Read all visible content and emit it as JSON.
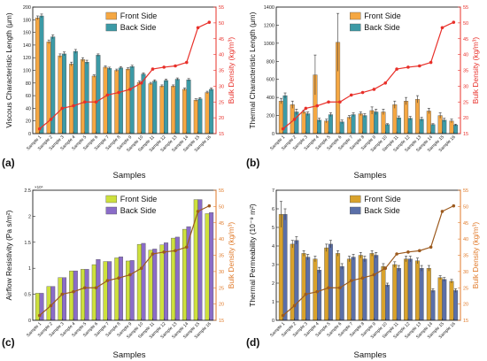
{
  "figure": {
    "samples_label": "Samples",
    "legend": {
      "front": "Front Side",
      "back": "Back Side"
    },
    "colors": {
      "front_a": "#f5a742",
      "back_a": "#3c9aa6",
      "front_d": "#d9a22b",
      "back_d": "#5a6fa8",
      "front_c": "#cde03c",
      "back_c": "#8a6cc8",
      "density_red": "#e8302a",
      "density_brown": "#9c5a1e",
      "axis_red": "#e8302a",
      "axis_orange": "#e07a2a"
    }
  },
  "chart_data": [
    {
      "panel": "(a)",
      "type": "bar",
      "categories": [
        "Sample 1",
        "Sample 2",
        "Sample 3",
        "Sample 4",
        "Sample 5",
        "Sample 6",
        "Sample 7",
        "Sample 8",
        "Sample 9",
        "Sample 10",
        "Sample 11",
        "Sample 12",
        "Sample 13",
        "Sample 14",
        "Sample 15",
        "Sample 16"
      ],
      "series": [
        {
          "name": "Front Side",
          "values": [
            183,
            145,
            123,
            110,
            117,
            91,
            105,
            100,
            102,
            81,
            79,
            75,
            75,
            70,
            53,
            65
          ],
          "errors": [
            3,
            3,
            3,
            3,
            3,
            2,
            2,
            2,
            2,
            2,
            2,
            2,
            2,
            2,
            2,
            2
          ]
        },
        {
          "name": "Back Side",
          "values": [
            186,
            153,
            126,
            130,
            113,
            124,
            103,
            104,
            106,
            94,
            83,
            84,
            86,
            85,
            55,
            70
          ],
          "errors": [
            3,
            3,
            3,
            3,
            3,
            2,
            2,
            2,
            2,
            2,
            2,
            2,
            2,
            2,
            2,
            2
          ]
        }
      ],
      "line": {
        "name": "Bulk Density",
        "values": [
          16.5,
          19.5,
          23,
          23.8,
          25,
          25,
          27.2,
          28,
          29,
          31,
          35.4,
          36,
          36.4,
          37.5,
          48.5,
          50.2
        ]
      },
      "ylabel": "Viscous Characteristic Length (μm)",
      "y2label": "Bulk Density (kg/m³)",
      "ylim": [
        0,
        200
      ],
      "yticks": [
        0,
        20,
        40,
        60,
        80,
        100,
        120,
        140,
        160,
        180,
        200
      ],
      "y2lim": [
        15,
        55
      ],
      "y2ticks": [
        15,
        20,
        25,
        30,
        35,
        40,
        45,
        50,
        55
      ],
      "legend": "top-center"
    },
    {
      "panel": "(b)",
      "type": "bar",
      "categories": [
        "Sample 1",
        "Sample 2",
        "Sample 3",
        "Sample 4",
        "Sample 5",
        "Sample 6",
        "Sample 7",
        "Sample 8",
        "Sample 9",
        "Sample 10",
        "Sample 11",
        "Sample 12",
        "Sample 13",
        "Sample 14",
        "Sample 15",
        "Sample 16"
      ],
      "series": [
        {
          "name": "Front Side",
          "values": [
            360,
            320,
            240,
            650,
            140,
            1010,
            180,
            220,
            255,
            240,
            320,
            360,
            380,
            250,
            200,
            140
          ],
          "errors": [
            30,
            40,
            20,
            220,
            20,
            320,
            20,
            20,
            40,
            30,
            40,
            40,
            40,
            30,
            30,
            20
          ]
        },
        {
          "name": "Back Side",
          "values": [
            420,
            240,
            220,
            150,
            210,
            130,
            210,
            200,
            240,
            100,
            175,
            170,
            160,
            100,
            150,
            95
          ],
          "errors": [
            30,
            30,
            20,
            20,
            20,
            20,
            20,
            20,
            30,
            10,
            20,
            20,
            20,
            10,
            20,
            10
          ]
        }
      ],
      "line": {
        "name": "Bulk Density",
        "values": [
          16.5,
          19.5,
          23,
          23.8,
          25,
          25,
          27.2,
          28,
          29,
          31,
          35.4,
          36,
          36.4,
          37.5,
          48.5,
          50.2
        ]
      },
      "ylabel": "Thermal Characteristic Length (μm)",
      "y2label": "Bulk Density (kg/m³)",
      "ylim": [
        0,
        1400
      ],
      "yticks": [
        0,
        200,
        400,
        600,
        800,
        1000,
        1200,
        1400
      ],
      "y2lim": [
        15,
        55
      ],
      "y2ticks": [
        15,
        20,
        25,
        30,
        35,
        40,
        45,
        50,
        55
      ],
      "legend": "top-center"
    },
    {
      "panel": "(c)",
      "type": "bar",
      "categories": [
        "Sample 1",
        "Sample 2",
        "Sample 3",
        "Sample 4",
        "Sample 5",
        "Sample 6",
        "Sample 7",
        "Sample 8",
        "Sample 9",
        "Sample 10",
        "Sample 11",
        "Sample 12",
        "Sample 13",
        "Sample 14",
        "Sample 15",
        "Sample 16"
      ],
      "series": [
        {
          "name": "Front Side",
          "values": [
            0.52,
            0.65,
            0.82,
            0.95,
            0.98,
            1.07,
            1.13,
            1.2,
            1.14,
            1.46,
            1.35,
            1.45,
            1.58,
            1.75,
            2.32,
            2.05
          ],
          "errors": [
            0,
            0,
            0,
            0,
            0,
            0,
            0,
            0,
            0,
            0,
            0,
            0,
            0,
            0,
            0,
            0
          ]
        },
        {
          "name": "Back Side",
          "values": [
            0.52,
            0.65,
            0.82,
            0.95,
            0.98,
            1.17,
            1.13,
            1.22,
            1.15,
            1.48,
            1.37,
            1.49,
            1.6,
            1.8,
            2.32,
            2.07
          ],
          "errors": [
            0,
            0,
            0,
            0,
            0,
            0,
            0,
            0,
            0,
            0,
            0,
            0,
            0,
            0,
            0,
            0
          ]
        }
      ],
      "line": {
        "name": "Bulk Density",
        "values": [
          16.5,
          19.5,
          23,
          23.8,
          25,
          25,
          27.2,
          28,
          29,
          31,
          35.4,
          36,
          36.4,
          37.5,
          48.5,
          50.2
        ]
      },
      "ylabel": "Airflow Resistivity (Pa s/m²)",
      "yscale_label": "×10⁴",
      "y2label": "Bulk Density (kg/m³)",
      "ylim": [
        0,
        2.5
      ],
      "yticks": [
        0,
        0.5,
        1,
        1.5,
        2,
        2.5
      ],
      "yticklabels": [
        "0",
        "0.5",
        "1",
        "1.5",
        "2",
        "2.5"
      ],
      "y2lim": [
        15,
        55
      ],
      "y2ticks": [
        15,
        20,
        25,
        30,
        35,
        40,
        45,
        50,
        55
      ],
      "legend": "top-center"
    },
    {
      "panel": "(d)",
      "type": "bar",
      "categories": [
        "Sample 1",
        "Sample 2",
        "Sample 3",
        "Sample 4",
        "Sample 5",
        "Sample 6",
        "Sample 7",
        "Sample 8",
        "Sample 9",
        "Sample 10",
        "Sample 11",
        "Sample 12",
        "Sample 13",
        "Sample 14",
        "Sample 15",
        "Sample 16"
      ],
      "series": [
        {
          "name": "Front Side",
          "values": [
            5.7,
            4.1,
            3.6,
            3.3,
            3.9,
            3.6,
            3.3,
            3.5,
            3.6,
            2.9,
            3.0,
            3.3,
            3.2,
            2.8,
            2.3,
            2.1
          ],
          "errors": [
            0.7,
            0.2,
            0.15,
            0.15,
            0.2,
            0.15,
            0.15,
            0.15,
            0.15,
            0.15,
            0.15,
            0.15,
            0.15,
            0.15,
            0.1,
            0.1
          ]
        },
        {
          "name": "Back Side",
          "values": [
            5.7,
            4.3,
            3.4,
            2.7,
            4.1,
            2.9,
            3.4,
            3.3,
            3.5,
            1.9,
            2.8,
            3.3,
            2.8,
            1.6,
            2.2,
            1.6
          ],
          "errors": [
            0.3,
            0.2,
            0.15,
            0.15,
            0.2,
            0.15,
            0.15,
            0.15,
            0.15,
            0.1,
            0.15,
            0.15,
            0.15,
            0.1,
            0.1,
            0.1
          ]
        }
      ],
      "line": {
        "name": "Bulk Density",
        "values": [
          16.5,
          19.5,
          23,
          23.8,
          25,
          25,
          27.2,
          28,
          29,
          31,
          35.4,
          36,
          36.4,
          37.5,
          48.5,
          50.2
        ]
      },
      "ylabel": "Thermal Permeability (10⁻⁹ m²)",
      "y2label": "Bulk Density (kg/m³)",
      "ylim": [
        0,
        7
      ],
      "yticks": [
        0,
        1,
        2,
        3,
        4,
        5,
        6,
        7
      ],
      "y2lim": [
        15,
        55
      ],
      "y2ticks": [
        15,
        20,
        25,
        30,
        35,
        40,
        45,
        50,
        55
      ],
      "legend": "top-center"
    }
  ]
}
